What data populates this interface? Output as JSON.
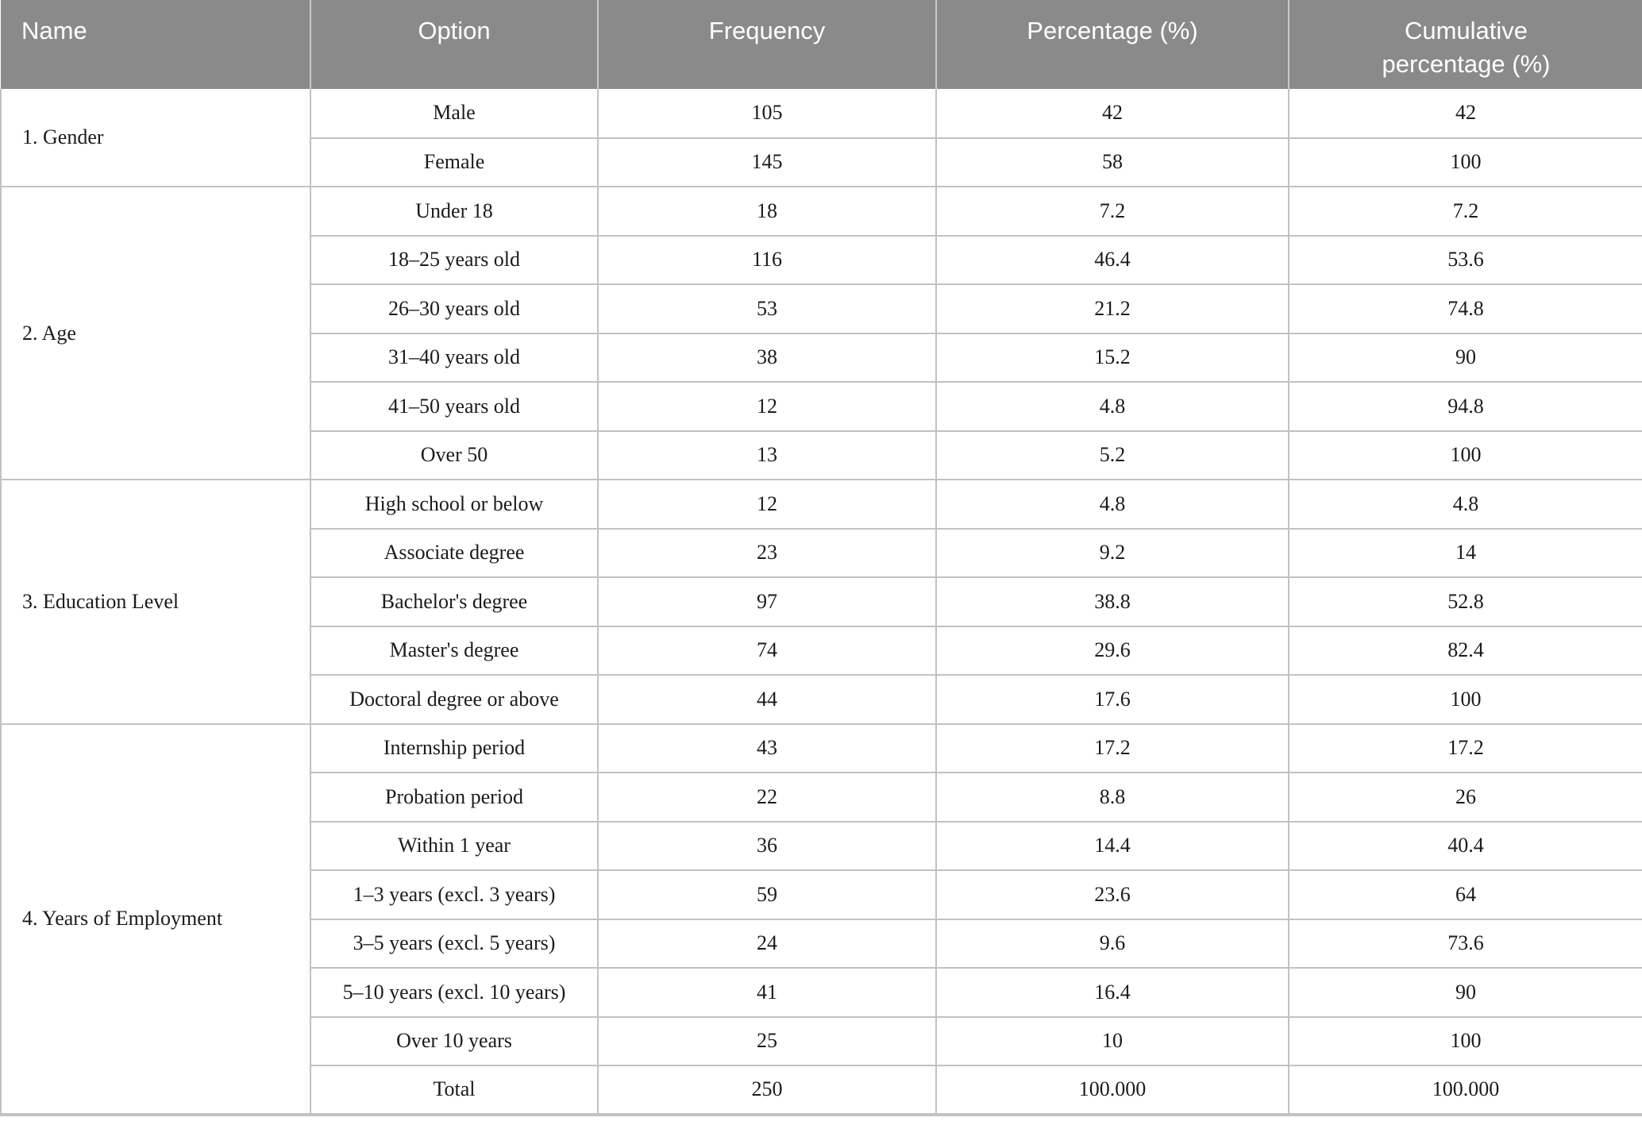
{
  "chart_data": {
    "type": "table",
    "columns": [
      "Name",
      "Option",
      "Frequency",
      "Percentage (%)",
      "Cumulative percentage (%)"
    ],
    "sections": [
      {
        "name": "1. Gender",
        "rows": [
          [
            "Male",
            "105",
            "42",
            "42"
          ],
          [
            "Female",
            "145",
            "58",
            "100"
          ]
        ]
      },
      {
        "name": "2. Age",
        "rows": [
          [
            "Under 18",
            "18",
            "7.2",
            "7.2"
          ],
          [
            "18–25 years old",
            "116",
            "46.4",
            "53.6"
          ],
          [
            "26–30 years old",
            "53",
            "21.2",
            "74.8"
          ],
          [
            "31–40 years old",
            "38",
            "15.2",
            "90"
          ],
          [
            "41–50 years old",
            "12",
            "4.8",
            "94.8"
          ],
          [
            "Over 50",
            "13",
            "5.2",
            "100"
          ]
        ]
      },
      {
        "name": "3. Education Level",
        "rows": [
          [
            "High school or below",
            "12",
            "4.8",
            "4.8"
          ],
          [
            "Associate degree",
            "23",
            "9.2",
            "14"
          ],
          [
            "Bachelor's degree",
            "97",
            "38.8",
            "52.8"
          ],
          [
            "Master's degree",
            "74",
            "29.6",
            "82.4"
          ],
          [
            "Doctoral degree or above",
            "44",
            "17.6",
            "100"
          ]
        ]
      },
      {
        "name": "4. Years of Employment",
        "rows": [
          [
            "Internship period",
            "43",
            "17.2",
            "17.2"
          ],
          [
            "Probation period",
            "22",
            "8.8",
            "26"
          ],
          [
            "Within 1 year",
            "36",
            "14.4",
            "40.4"
          ],
          [
            "1–3 years (excl. 3 years)",
            "59",
            "23.6",
            "64"
          ],
          [
            "3–5 years (excl. 5 years)",
            "24",
            "9.6",
            "73.6"
          ],
          [
            "5–10 years (excl. 10 years)",
            "41",
            "16.4",
            "90"
          ],
          [
            "Over 10 years",
            "25",
            "10",
            "100"
          ],
          [
            "Total",
            "250",
            "100.000",
            "100.000"
          ]
        ]
      }
    ]
  },
  "colors": {
    "header_bg": "#8a8a8a",
    "header_text": "#ffffff",
    "grid_line": "#c2c2c2",
    "section_line": "#b7b7b7",
    "bottom_rule": "#c3c3c3",
    "body_text": "#1b1b1b"
  }
}
